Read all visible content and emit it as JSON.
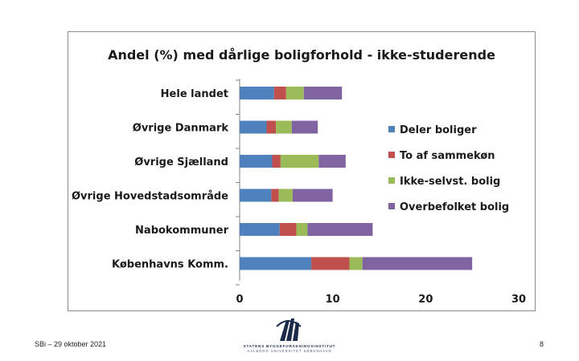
{
  "chart_data": {
    "type": "bar",
    "stacked": true,
    "orientation": "horizontal",
    "title": "Andel (%) med dårlige boligforhold - ikke-studerende",
    "categories": [
      "Hele landet",
      "Øvrige Danmark",
      "Øvrige Sjælland",
      "Øvrige Hovedstadsområde",
      "Nabokommuner",
      "Københavns Komm."
    ],
    "series": [
      {
        "name": "Deler boliger",
        "color": "#4f81bd",
        "values": [
          3.7,
          2.9,
          3.5,
          3.4,
          4.3,
          7.7
        ]
      },
      {
        "name": "To af sammekøn",
        "color": "#c0504d",
        "values": [
          1.3,
          1.0,
          0.9,
          0.8,
          1.8,
          4.1
        ]
      },
      {
        "name": "Ikke-selvst. bolig",
        "color": "#9bbb59",
        "values": [
          1.9,
          1.7,
          4.1,
          1.5,
          1.2,
          1.4
        ]
      },
      {
        "name": "Overbefolket bolig",
        "color": "#8064a2",
        "values": [
          4.1,
          2.8,
          2.9,
          4.3,
          7.0,
          11.8
        ]
      }
    ],
    "xlim": [
      0,
      30
    ],
    "xticks": [
      "0",
      "10",
      "20",
      "30"
    ],
    "legend_position": "right"
  },
  "footer": {
    "date_text": "SBi – 29 oktober 2021",
    "page_number": "8"
  },
  "logo": {
    "line1": "STATENS BYGGEFORSKNINGSINSTITUT",
    "line2": "AALBORG UNIVERSITET KØBENHAVN"
  }
}
